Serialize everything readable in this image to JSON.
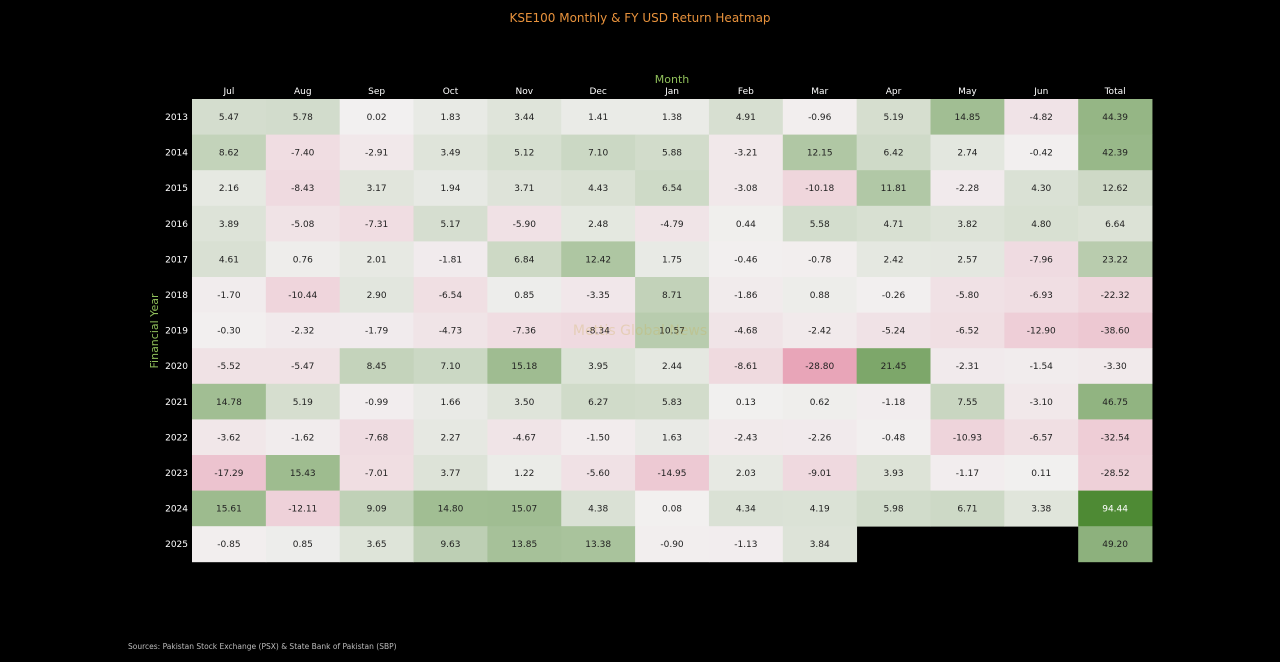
{
  "chart_data": {
    "type": "heatmap",
    "title": "KSE100 Monthly & FY USD Return Heatmap",
    "xlabel": "Month",
    "ylabel": "Financial Year",
    "columns": [
      "Jul",
      "Aug",
      "Sep",
      "Oct",
      "Nov",
      "Dec",
      "Jan",
      "Feb",
      "Mar",
      "Apr",
      "May",
      "Jun",
      "Total"
    ],
    "rows": [
      "2013",
      "2014",
      "2015",
      "2016",
      "2017",
      "2018",
      "2019",
      "2020",
      "2021",
      "2022",
      "2023",
      "2024",
      "2025"
    ],
    "values": [
      [
        5.47,
        5.78,
        0.02,
        1.83,
        3.44,
        1.41,
        1.38,
        4.91,
        -0.96,
        5.19,
        14.85,
        -4.82,
        44.39
      ],
      [
        8.62,
        -7.4,
        -2.91,
        3.49,
        5.12,
        7.1,
        5.88,
        -3.21,
        12.15,
        6.42,
        2.74,
        -0.42,
        42.39
      ],
      [
        2.16,
        -8.43,
        3.17,
        1.94,
        3.71,
        4.43,
        6.54,
        -3.08,
        -10.18,
        11.81,
        -2.28,
        4.3,
        12.62
      ],
      [
        3.89,
        -5.08,
        -7.31,
        5.17,
        -5.9,
        2.48,
        -4.79,
        0.44,
        5.58,
        4.71,
        3.82,
        4.8,
        6.64
      ],
      [
        4.61,
        0.76,
        2.01,
        -1.81,
        6.84,
        12.42,
        1.75,
        -0.46,
        -0.78,
        2.42,
        2.57,
        -7.96,
        23.22
      ],
      [
        -1.7,
        -10.44,
        2.9,
        -6.54,
        0.85,
        -3.35,
        8.71,
        -1.86,
        0.88,
        -0.26,
        -5.8,
        -6.93,
        -22.32
      ],
      [
        -0.3,
        -2.32,
        -1.79,
        -4.73,
        -7.36,
        -8.34,
        10.57,
        -4.68,
        -2.42,
        -5.24,
        -6.52,
        -12.9,
        -38.6
      ],
      [
        -5.52,
        -5.47,
        8.45,
        7.1,
        15.18,
        3.95,
        2.44,
        -8.61,
        -28.8,
        21.45,
        -2.31,
        -1.54,
        -3.3
      ],
      [
        14.78,
        5.19,
        -0.99,
        1.66,
        3.5,
        6.27,
        5.83,
        0.13,
        0.62,
        -1.18,
        7.55,
        -3.1,
        46.75
      ],
      [
        -3.62,
        -1.62,
        -7.68,
        2.27,
        -4.67,
        -1.5,
        1.63,
        -2.43,
        -2.26,
        -0.48,
        -10.93,
        -6.57,
        -32.54
      ],
      [
        -17.29,
        15.43,
        -7.01,
        3.77,
        1.22,
        -5.6,
        -14.95,
        2.03,
        -9.01,
        3.93,
        -1.17,
        0.11,
        -28.52
      ],
      [
        15.61,
        -12.11,
        9.09,
        14.8,
        15.07,
        4.38,
        0.08,
        4.34,
        4.19,
        5.98,
        6.71,
        3.38,
        94.44
      ],
      [
        -0.85,
        0.85,
        3.65,
        9.63,
        13.85,
        13.38,
        -0.9,
        -1.13,
        3.84,
        null,
        null,
        null,
        49.2
      ]
    ],
    "value_format": "2 decimals",
    "grid": false,
    "legend": "none",
    "colors": {
      "positive": "#4e8a34",
      "negative": "#e8a2b6",
      "neutral": "#f2f0f0",
      "missing": "#000000",
      "background": "#000000",
      "title": "#e8923c",
      "axis_title": "#8fbf5a",
      "tick_label": "#ffffff",
      "cell_text": "#222222"
    }
  },
  "watermark": "Mettis Global News",
  "source": "Sources: Pakistan Stock Exchange (PSX) & State Bank of Pakistan (SBP)"
}
